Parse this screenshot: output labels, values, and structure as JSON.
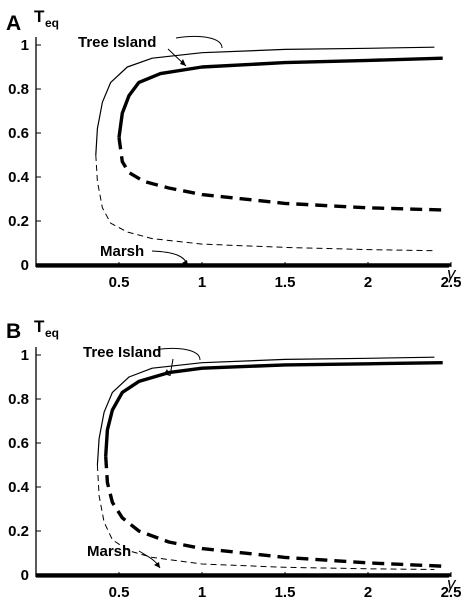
{
  "chart_data": [
    {
      "type": "line",
      "panel": "A",
      "ylabel_main": "T",
      "ylabel_sub": "eq",
      "xlabel": "γ",
      "xlim": [
        0,
        2.5
      ],
      "ylim": [
        0,
        1
      ],
      "xticks": [
        "0.5",
        "1",
        "1.5",
        "2",
        "2.5"
      ],
      "yticks": [
        "0",
        "0.2",
        "0.4",
        "0.6",
        "0.8",
        "1"
      ],
      "annotations": [
        "Tree Island",
        "Marsh"
      ],
      "series": [
        {
          "style": "thin-solid",
          "points": [
            [
              0.36,
              0.5
            ],
            [
              0.37,
              0.62
            ],
            [
              0.4,
              0.74
            ],
            [
              0.45,
              0.83
            ],
            [
              0.55,
              0.9
            ],
            [
              0.7,
              0.94
            ],
            [
              1.0,
              0.965
            ],
            [
              1.5,
              0.98
            ],
            [
              2.0,
              0.985
            ],
            [
              2.4,
              0.99
            ]
          ]
        },
        {
          "style": "thin-dashed",
          "points": [
            [
              0.36,
              0.5
            ],
            [
              0.37,
              0.38
            ],
            [
              0.4,
              0.26
            ],
            [
              0.45,
              0.19
            ],
            [
              0.55,
              0.15
            ],
            [
              0.7,
              0.12
            ],
            [
              1.0,
              0.095
            ],
            [
              1.5,
              0.08
            ],
            [
              2.0,
              0.07
            ],
            [
              2.4,
              0.065
            ]
          ]
        },
        {
          "style": "thick-solid",
          "points": [
            [
              0.5,
              0.58
            ],
            [
              0.52,
              0.69
            ],
            [
              0.56,
              0.77
            ],
            [
              0.62,
              0.83
            ],
            [
              0.75,
              0.87
            ],
            [
              1.0,
              0.9
            ],
            [
              1.5,
              0.92
            ],
            [
              2.0,
              0.93
            ],
            [
              2.45,
              0.94
            ]
          ]
        },
        {
          "style": "thick-dashed",
          "points": [
            [
              0.5,
              0.58
            ],
            [
              0.52,
              0.47
            ],
            [
              0.56,
              0.42
            ],
            [
              0.65,
              0.38
            ],
            [
              0.8,
              0.35
            ],
            [
              1.0,
              0.32
            ],
            [
              1.5,
              0.28
            ],
            [
              2.0,
              0.26
            ],
            [
              2.45,
              0.25
            ]
          ]
        },
        {
          "style": "thick-solid",
          "points": [
            [
              0,
              0
            ],
            [
              2.5,
              0
            ]
          ]
        }
      ]
    },
    {
      "type": "line",
      "panel": "B",
      "ylabel_main": "T",
      "ylabel_sub": "eq",
      "xlabel": "γ",
      "xlim": [
        0,
        2.5
      ],
      "ylim": [
        0,
        1
      ],
      "xticks": [
        "0.5",
        "1",
        "1.5",
        "2",
        "2.5"
      ],
      "yticks": [
        "0",
        "0.2",
        "0.4",
        "0.6",
        "0.8",
        "1"
      ],
      "annotations": [
        "Tree Island",
        "Marsh"
      ],
      "series": [
        {
          "style": "thin-solid",
          "points": [
            [
              0.37,
              0.5
            ],
            [
              0.38,
              0.62
            ],
            [
              0.41,
              0.74
            ],
            [
              0.46,
              0.83
            ],
            [
              0.56,
              0.9
            ],
            [
              0.7,
              0.94
            ],
            [
              1.0,
              0.965
            ],
            [
              1.5,
              0.98
            ],
            [
              2.0,
              0.985
            ],
            [
              2.4,
              0.99
            ]
          ]
        },
        {
          "style": "thin-dashed",
          "points": [
            [
              0.37,
              0.5
            ],
            [
              0.38,
              0.36
            ],
            [
              0.41,
              0.24
            ],
            [
              0.46,
              0.16
            ],
            [
              0.56,
              0.11
            ],
            [
              0.7,
              0.08
            ],
            [
              1.0,
              0.05
            ],
            [
              1.5,
              0.035
            ],
            [
              2.0,
              0.028
            ],
            [
              2.4,
              0.025
            ]
          ]
        },
        {
          "style": "thick-solid",
          "points": [
            [
              0.42,
              0.54
            ],
            [
              0.43,
              0.66
            ],
            [
              0.46,
              0.75
            ],
            [
              0.52,
              0.83
            ],
            [
              0.62,
              0.88
            ],
            [
              0.8,
              0.92
            ],
            [
              1.0,
              0.94
            ],
            [
              1.5,
              0.955
            ],
            [
              2.0,
              0.96
            ],
            [
              2.45,
              0.965
            ]
          ]
        },
        {
          "style": "thick-dashed",
          "points": [
            [
              0.42,
              0.54
            ],
            [
              0.43,
              0.42
            ],
            [
              0.46,
              0.33
            ],
            [
              0.52,
              0.26
            ],
            [
              0.62,
              0.2
            ],
            [
              0.8,
              0.15
            ],
            [
              1.0,
              0.12
            ],
            [
              1.5,
              0.08
            ],
            [
              2.0,
              0.055
            ],
            [
              2.45,
              0.04
            ]
          ]
        },
        {
          "style": "thick-solid",
          "points": [
            [
              0,
              0
            ],
            [
              2.5,
              0
            ]
          ]
        }
      ]
    }
  ]
}
